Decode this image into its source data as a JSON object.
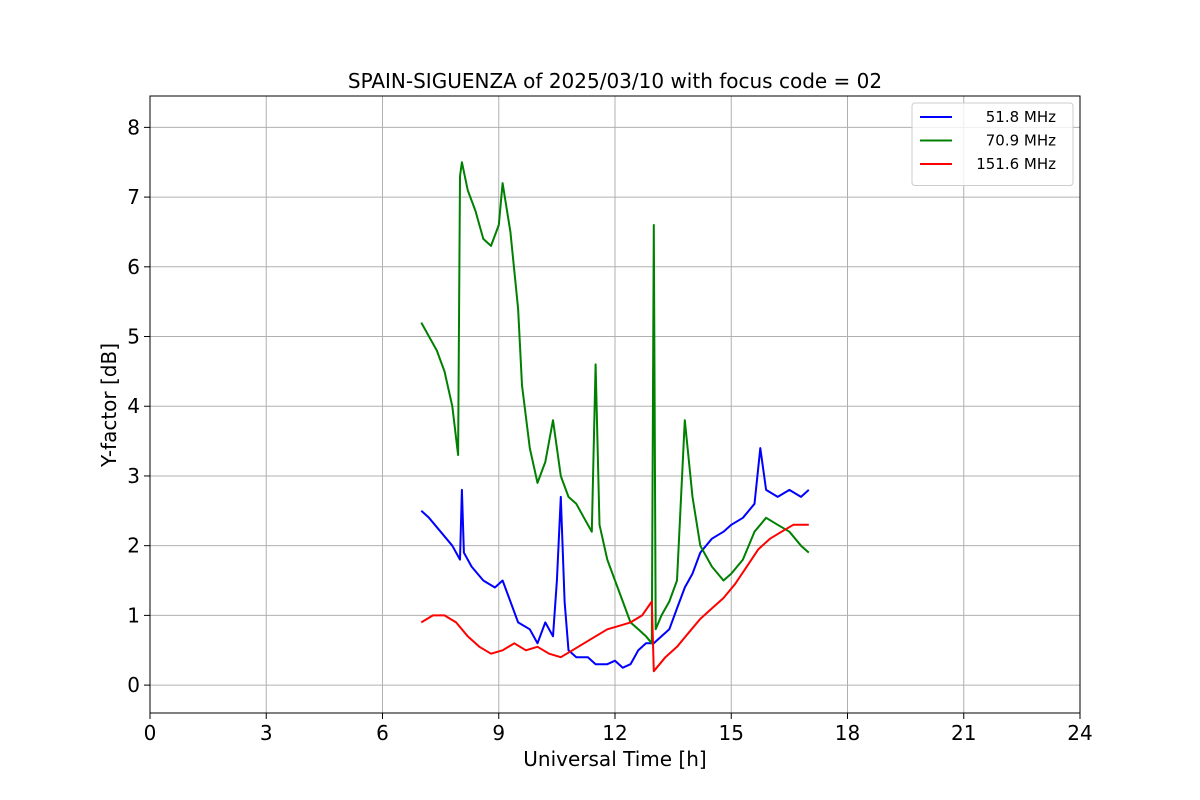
{
  "chart_data": {
    "type": "line",
    "title": "SPAIN-SIGUENZA of 2025/03/10 with focus code = 02",
    "xlabel": "Universal Time [h]",
    "ylabel": "Y-factor [dB]",
    "xlim": [
      0,
      24
    ],
    "ylim": [
      -0.4,
      8.45
    ],
    "xticks": [
      0,
      3,
      6,
      9,
      12,
      15,
      18,
      21,
      24
    ],
    "yticks": [
      0,
      1,
      2,
      3,
      4,
      5,
      6,
      7,
      8
    ],
    "grid": true,
    "legend_position": "top-right",
    "series": [
      {
        "name": "51.8 MHz",
        "color": "#0000ff",
        "x": [
          7.0,
          7.2,
          7.5,
          7.8,
          8.0,
          8.05,
          8.1,
          8.3,
          8.6,
          8.9,
          9.1,
          9.3,
          9.5,
          9.8,
          10.0,
          10.2,
          10.4,
          10.5,
          10.6,
          10.7,
          10.8,
          11.0,
          11.3,
          11.5,
          11.8,
          12.0,
          12.2,
          12.4,
          12.6,
          12.8,
          13.0,
          13.2,
          13.4,
          13.6,
          13.8,
          14.0,
          14.2,
          14.5,
          14.8,
          15.0,
          15.3,
          15.6,
          15.75,
          15.9,
          16.2,
          16.5,
          16.8,
          17.0
        ],
        "y": [
          2.5,
          2.4,
          2.2,
          2.0,
          1.8,
          2.8,
          1.9,
          1.7,
          1.5,
          1.4,
          1.5,
          1.2,
          0.9,
          0.8,
          0.6,
          0.9,
          0.7,
          1.5,
          2.7,
          1.2,
          0.5,
          0.4,
          0.4,
          0.3,
          0.3,
          0.35,
          0.25,
          0.3,
          0.5,
          0.6,
          0.6,
          0.7,
          0.8,
          1.1,
          1.4,
          1.6,
          1.9,
          2.1,
          2.2,
          2.3,
          2.4,
          2.6,
          3.4,
          2.8,
          2.7,
          2.8,
          2.7,
          2.8
        ]
      },
      {
        "name": "70.9 MHz",
        "color": "#008000",
        "x": [
          7.0,
          7.2,
          7.4,
          7.6,
          7.8,
          7.95,
          8.0,
          8.05,
          8.2,
          8.4,
          8.6,
          8.8,
          9.0,
          9.1,
          9.3,
          9.5,
          9.6,
          9.8,
          10.0,
          10.2,
          10.4,
          10.6,
          10.8,
          11.0,
          11.2,
          11.4,
          11.5,
          11.6,
          11.8,
          12.0,
          12.2,
          12.4,
          12.6,
          12.8,
          12.95,
          13.0,
          13.05,
          13.2,
          13.4,
          13.6,
          13.8,
          14.0,
          14.2,
          14.5,
          14.8,
          15.0,
          15.3,
          15.6,
          15.9,
          16.2,
          16.5,
          16.8,
          17.0
        ],
        "y": [
          5.2,
          5.0,
          4.8,
          4.5,
          4.0,
          3.3,
          7.3,
          7.5,
          7.1,
          6.8,
          6.4,
          6.3,
          6.6,
          7.2,
          6.5,
          5.4,
          4.3,
          3.4,
          2.9,
          3.2,
          3.8,
          3.0,
          2.7,
          2.6,
          2.4,
          2.2,
          4.6,
          2.3,
          1.8,
          1.5,
          1.2,
          0.9,
          0.8,
          0.7,
          0.6,
          6.6,
          0.8,
          1.0,
          1.2,
          1.5,
          3.8,
          2.7,
          2.0,
          1.7,
          1.5,
          1.6,
          1.8,
          2.2,
          2.4,
          2.3,
          2.2,
          2.0,
          1.9
        ]
      },
      {
        "name": "151.6 MHz",
        "color": "#ff0000",
        "x": [
          7.0,
          7.3,
          7.6,
          7.9,
          8.2,
          8.5,
          8.8,
          9.1,
          9.4,
          9.7,
          10.0,
          10.3,
          10.6,
          10.9,
          11.2,
          11.5,
          11.8,
          12.1,
          12.4,
          12.7,
          12.95,
          13.0,
          13.3,
          13.6,
          13.9,
          14.2,
          14.5,
          14.8,
          15.1,
          15.4,
          15.7,
          16.0,
          16.3,
          16.6,
          16.9,
          17.0
        ],
        "y": [
          0.9,
          1.0,
          1.0,
          0.9,
          0.7,
          0.55,
          0.45,
          0.5,
          0.6,
          0.5,
          0.55,
          0.45,
          0.4,
          0.5,
          0.6,
          0.7,
          0.8,
          0.85,
          0.9,
          1.0,
          1.2,
          0.2,
          0.4,
          0.55,
          0.75,
          0.95,
          1.1,
          1.25,
          1.45,
          1.7,
          1.95,
          2.1,
          2.2,
          2.3,
          2.3,
          2.3
        ]
      }
    ]
  }
}
